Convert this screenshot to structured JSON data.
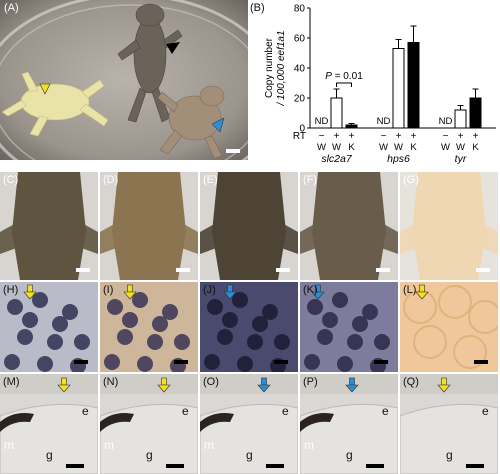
{
  "panel_labels": [
    "(A)",
    "(B)",
    "(C)",
    "(D)",
    "(E)",
    "(F)",
    "(G)",
    "(H)",
    "(I)",
    "(J)",
    "(K)",
    "(L)",
    "(M)",
    "(N)",
    "(O)",
    "(P)",
    "(Q)"
  ],
  "tissue_labels": {
    "epidermis": "e",
    "melanophore": "m",
    "gut": "g"
  },
  "colors": {
    "yellow_arrow": "#f2e022",
    "blue_arrow": "#2a8fd6",
    "black_arrow": "#000000"
  },
  "chart_data": {
    "type": "bar",
    "ylabel": "Copy number / 100,000 eef1a1",
    "ylim": [
      0,
      80
    ],
    "yticks": [
      0,
      20,
      40,
      60,
      80
    ],
    "rt_label": "RT",
    "rt_row": [
      "−",
      "+",
      "+",
      "−",
      "+",
      "+",
      "−",
      "+",
      "+"
    ],
    "genotype_row": [
      "W",
      "W",
      "K",
      "W",
      "W",
      "K",
      "W",
      "W",
      "K"
    ],
    "genes": [
      "slc2a7",
      "hps6",
      "tyr"
    ],
    "groups": [
      {
        "gene": "slc2a7",
        "bars": [
          {
            "label": "ND",
            "value": null
          },
          {
            "value": 20,
            "err": 6
          },
          {
            "value": 2,
            "err": 1
          }
        ]
      },
      {
        "gene": "hps6",
        "bars": [
          {
            "label": "ND",
            "value": null
          },
          {
            "value": 53,
            "err": 6
          },
          {
            "value": 57,
            "err": 11
          }
        ]
      },
      {
        "gene": "tyr",
        "bars": [
          {
            "label": "ND",
            "value": null
          },
          {
            "value": 12,
            "err": 3
          },
          {
            "value": 20,
            "err": 6
          }
        ]
      }
    ],
    "annotation": "P = 0.01"
  }
}
